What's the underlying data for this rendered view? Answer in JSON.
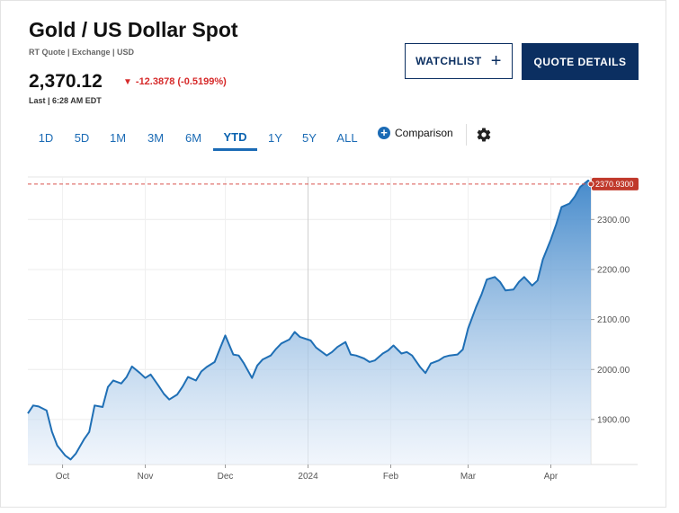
{
  "header": {
    "title": "Gold / US Dollar Spot",
    "subtitle": "RT Quote | Exchange | USD",
    "price": "2,370.12",
    "change": "-12.3878 (-0.5199%)",
    "change_arrow": "▼",
    "last_time": "Last | 6:28 AM EDT"
  },
  "buttons": {
    "watchlist_label": "WATCHLIST",
    "watchlist_icon": "plus-icon",
    "quote_details_label": "QUOTE DETAILS"
  },
  "tabs": [
    {
      "label": "1D",
      "active": false
    },
    {
      "label": "5D",
      "active": false
    },
    {
      "label": "1M",
      "active": false
    },
    {
      "label": "3M",
      "active": false
    },
    {
      "label": "6M",
      "active": false
    },
    {
      "label": "YTD",
      "active": true
    },
    {
      "label": "1Y",
      "active": false
    },
    {
      "label": "5Y",
      "active": false
    },
    {
      "label": "ALL",
      "active": false
    }
  ],
  "comparison": {
    "label": "Comparison",
    "icon": "add-circle-icon"
  },
  "settings": {
    "icon": "gear-icon"
  },
  "colors": {
    "line": "#1f6fb5",
    "fill_top": "#3d85c9",
    "fill_bottom": "#e8f0fa",
    "price_tag": "#c0392b",
    "dashed": "#d9534f",
    "brand": "#0b2f61",
    "negative": "#d62a2a"
  },
  "chart_data": {
    "type": "area",
    "title": "",
    "xlabel": "",
    "ylabel": "",
    "x_tick_labels": [
      "Oct",
      "Nov",
      "Dec",
      "2024",
      "Feb",
      "Mar",
      "Apr"
    ],
    "y_tick_labels": [
      "1900.00",
      "2000.00",
      "2100.00",
      "2200.00",
      "2300.00"
    ],
    "y_ticks": [
      1900,
      2000,
      2100,
      2200,
      2300
    ],
    "ylim": [
      1810,
      2385
    ],
    "last_price_label": "2370.9300",
    "last_price": 2370.93,
    "grid": true,
    "x": [
      "2023-09-18",
      "2023-09-20",
      "2023-09-22",
      "2023-09-25",
      "2023-09-27",
      "2023-09-29",
      "2023-10-02",
      "2023-10-04",
      "2023-10-06",
      "2023-10-09",
      "2023-10-11",
      "2023-10-13",
      "2023-10-16",
      "2023-10-18",
      "2023-10-20",
      "2023-10-23",
      "2023-10-25",
      "2023-10-27",
      "2023-10-30",
      "2023-11-01",
      "2023-11-03",
      "2023-11-06",
      "2023-11-08",
      "2023-11-10",
      "2023-11-13",
      "2023-11-15",
      "2023-11-17",
      "2023-11-20",
      "2023-11-22",
      "2023-11-24",
      "2023-11-27",
      "2023-11-29",
      "2023-12-01",
      "2023-12-04",
      "2023-12-06",
      "2023-12-08",
      "2023-12-11",
      "2023-12-13",
      "2023-12-15",
      "2023-12-18",
      "2023-12-20",
      "2023-12-22",
      "2023-12-25",
      "2023-12-27",
      "2023-12-29",
      "2024-01-02",
      "2024-01-04",
      "2024-01-08",
      "2024-01-10",
      "2024-01-12",
      "2024-01-15",
      "2024-01-17",
      "2024-01-19",
      "2024-01-22",
      "2024-01-24",
      "2024-01-26",
      "2024-01-29",
      "2024-01-31",
      "2024-02-02",
      "2024-02-05",
      "2024-02-07",
      "2024-02-09",
      "2024-02-12",
      "2024-02-14",
      "2024-02-16",
      "2024-02-19",
      "2024-02-21",
      "2024-02-23",
      "2024-02-26",
      "2024-02-28",
      "2024-03-01",
      "2024-03-04",
      "2024-03-06",
      "2024-03-08",
      "2024-03-11",
      "2024-03-13",
      "2024-03-15",
      "2024-03-18",
      "2024-03-20",
      "2024-03-22",
      "2024-03-25",
      "2024-03-27",
      "2024-03-29",
      "2024-04-01",
      "2024-04-03",
      "2024-04-05",
      "2024-04-08",
      "2024-04-10",
      "2024-04-12",
      "2024-04-15",
      "2024-04-16"
    ],
    "values": [
      1912,
      1928,
      1926,
      1918,
      1876,
      1848,
      1828,
      1820,
      1832,
      1860,
      1875,
      1928,
      1925,
      1965,
      1978,
      1972,
      1985,
      2006,
      1993,
      1983,
      1990,
      1967,
      1951,
      1940,
      1950,
      1966,
      1985,
      1978,
      1996,
      2005,
      2015,
      2042,
      2068,
      2030,
      2028,
      2012,
      1983,
      2008,
      2020,
      2028,
      2041,
      2052,
      2060,
      2075,
      2065,
      2058,
      2044,
      2028,
      2035,
      2045,
      2055,
      2030,
      2028,
      2022,
      2015,
      2018,
      2032,
      2038,
      2048,
      2032,
      2035,
      2028,
      2005,
      1993,
      2012,
      2018,
      2025,
      2028,
      2030,
      2040,
      2082,
      2125,
      2150,
      2180,
      2185,
      2175,
      2158,
      2160,
      2175,
      2185,
      2168,
      2178,
      2220,
      2260,
      2290,
      2325,
      2332,
      2346,
      2365,
      2378,
      2371
    ]
  }
}
